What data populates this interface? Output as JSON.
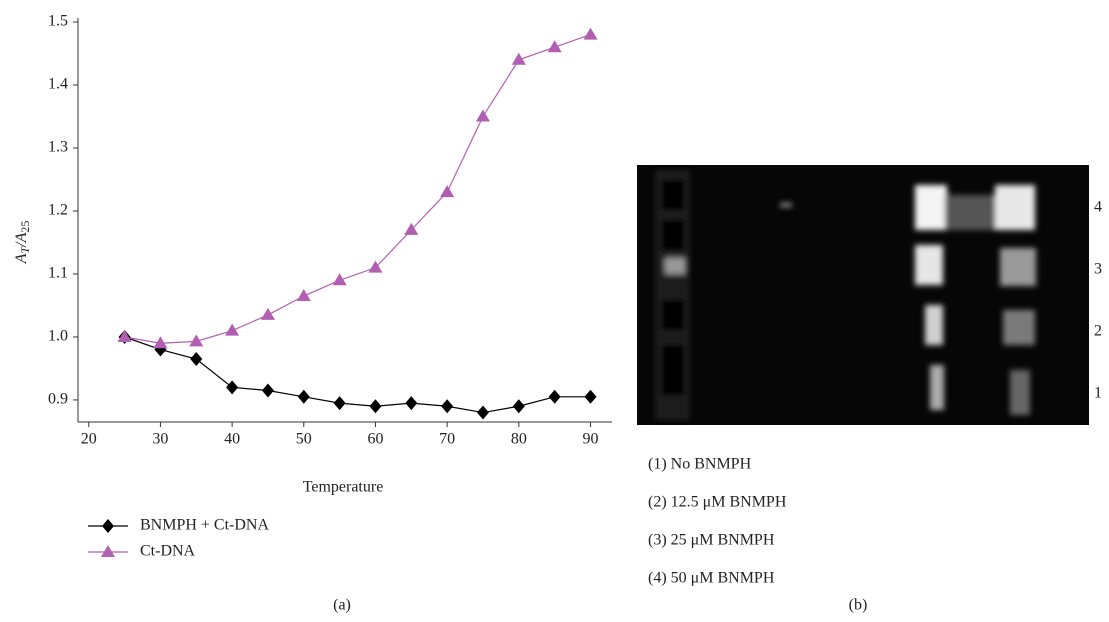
{
  "chart_data": {
    "type": "line",
    "ylabel": [
      "A",
      "T",
      "/A",
      "25"
    ],
    "xlabel": "Temperature",
    "x": [
      25,
      30,
      35,
      40,
      45,
      50,
      55,
      60,
      65,
      70,
      75,
      80,
      85,
      90
    ],
    "series": [
      {
        "name": "BNMPH + Ct-DNA",
        "color": "#000000",
        "marker": "diamond",
        "values": [
          1.0,
          0.98,
          0.965,
          0.92,
          0.915,
          0.905,
          0.895,
          0.89,
          0.895,
          0.89,
          0.88,
          0.89,
          0.905,
          0.905
        ]
      },
      {
        "name": "Ct-DNA",
        "color": "#b25fb2",
        "marker": "triangle",
        "values": [
          1.0,
          0.99,
          0.993,
          1.01,
          1.035,
          1.065,
          1.09,
          1.11,
          1.17,
          1.23,
          1.35,
          1.44,
          1.46,
          1.48
        ]
      }
    ],
    "xlim": [
      18.5,
      93
    ],
    "ylim": [
      0.865,
      1.5
    ],
    "xticks": [
      20,
      30,
      40,
      50,
      60,
      70,
      80,
      90
    ],
    "yticks": [
      0.9,
      {
        "value": 1,
        "label": "1.0"
      },
      1.1,
      1.2,
      1.3,
      1.4,
      1.5
    ],
    "grid": false,
    "legend": "below"
  },
  "gel": {
    "lane_labels": [
      4,
      3,
      2,
      1
    ],
    "legend": [
      "(1) No BNMPH",
      "(2) 12.5 μM BNMPH",
      "(3) 25 μM BNMPH",
      "(4) 50 μM BNMPH"
    ]
  },
  "panel_labels": [
    "(a)",
    "(b)"
  ]
}
